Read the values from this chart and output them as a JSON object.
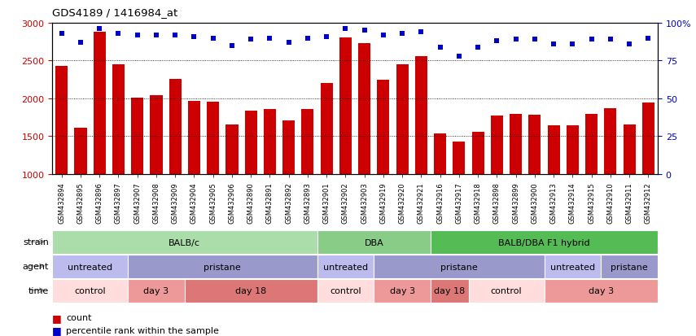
{
  "title": "GDS4189 / 1416984_at",
  "samples": [
    "GSM432894",
    "GSM432895",
    "GSM432896",
    "GSM432897",
    "GSM432907",
    "GSM432908",
    "GSM432909",
    "GSM432904",
    "GSM432905",
    "GSM432906",
    "GSM432890",
    "GSM432891",
    "GSM432892",
    "GSM432893",
    "GSM432901",
    "GSM432902",
    "GSM432903",
    "GSM432919",
    "GSM432920",
    "GSM432921",
    "GSM432916",
    "GSM432917",
    "GSM432918",
    "GSM432898",
    "GSM432899",
    "GSM432900",
    "GSM432913",
    "GSM432914",
    "GSM432915",
    "GSM432910",
    "GSM432911",
    "GSM432912"
  ],
  "counts": [
    2430,
    1610,
    2880,
    2450,
    2010,
    2040,
    2260,
    1970,
    1960,
    1660,
    1840,
    1860,
    1710,
    1860,
    2200,
    2810,
    2730,
    2250,
    2450,
    2560,
    1540,
    1430,
    1560,
    1770,
    1800,
    1780,
    1640,
    1640,
    1790,
    1870,
    1660,
    1940
  ],
  "percentiles": [
    93,
    87,
    96,
    93,
    92,
    92,
    92,
    91,
    90,
    85,
    89,
    90,
    87,
    90,
    91,
    96,
    95,
    92,
    93,
    94,
    84,
    78,
    84,
    88,
    89,
    89,
    86,
    86,
    89,
    89,
    86,
    90
  ],
  "bar_color": "#cc0000",
  "dot_color": "#0000cc",
  "ylim_left": [
    1000,
    3000
  ],
  "ylim_right": [
    0,
    100
  ],
  "yticks_left": [
    1000,
    1500,
    2000,
    2500,
    3000
  ],
  "yticks_right": [
    0,
    25,
    50,
    75,
    100
  ],
  "strain_groups": [
    {
      "label": "BALB/c",
      "start": 0,
      "end": 14,
      "color": "#aaddaa"
    },
    {
      "label": "DBA",
      "start": 14,
      "end": 20,
      "color": "#88cc88"
    },
    {
      "label": "BALB/DBA F1 hybrid",
      "start": 20,
      "end": 32,
      "color": "#55bb55"
    }
  ],
  "agent_groups": [
    {
      "label": "untreated",
      "start": 0,
      "end": 4,
      "color": "#bbbbee"
    },
    {
      "label": "pristane",
      "start": 4,
      "end": 14,
      "color": "#9999cc"
    },
    {
      "label": "untreated",
      "start": 14,
      "end": 17,
      "color": "#bbbbee"
    },
    {
      "label": "pristane",
      "start": 17,
      "end": 26,
      "color": "#9999cc"
    },
    {
      "label": "untreated",
      "start": 26,
      "end": 29,
      "color": "#bbbbee"
    },
    {
      "label": "pristane",
      "start": 29,
      "end": 32,
      "color": "#9999cc"
    }
  ],
  "time_groups": [
    {
      "label": "control",
      "start": 0,
      "end": 4,
      "color": "#ffdddd"
    },
    {
      "label": "day 3",
      "start": 4,
      "end": 7,
      "color": "#ee9999"
    },
    {
      "label": "day 18",
      "start": 7,
      "end": 14,
      "color": "#dd7777"
    },
    {
      "label": "control",
      "start": 14,
      "end": 17,
      "color": "#ffdddd"
    },
    {
      "label": "day 3",
      "start": 17,
      "end": 20,
      "color": "#ee9999"
    },
    {
      "label": "day 18",
      "start": 20,
      "end": 22,
      "color": "#dd7777"
    },
    {
      "label": "control",
      "start": 22,
      "end": 26,
      "color": "#ffdddd"
    },
    {
      "label": "day 3",
      "start": 26,
      "end": 32,
      "color": "#ee9999"
    }
  ],
  "legend_items": [
    {
      "label": "count",
      "color": "#cc0000"
    },
    {
      "label": "percentile rank within the sample",
      "color": "#0000cc"
    }
  ],
  "axis_label_color_left": "#cc0000",
  "axis_label_color_right": "#0000cc",
  "background_color": "#ffffff",
  "grid_color": "#000000"
}
